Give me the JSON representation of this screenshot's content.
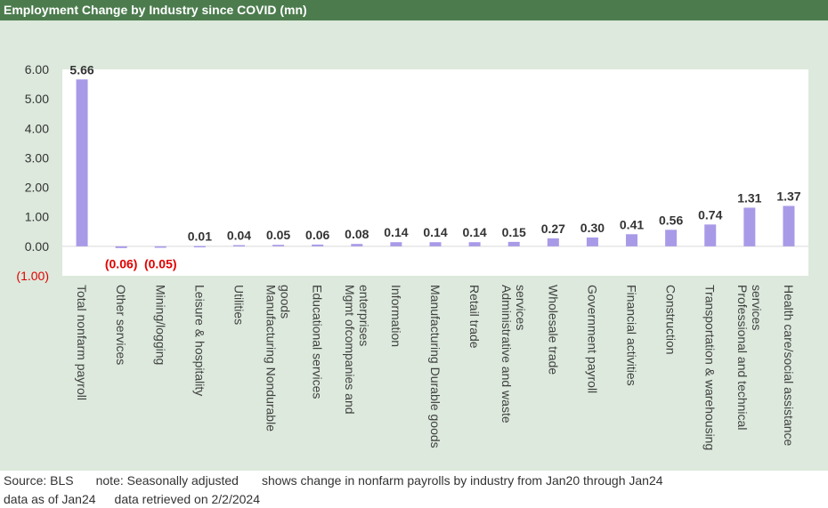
{
  "header": {
    "title": "Employment Change by Industry since COVID (mn)"
  },
  "footer": {
    "source": "Source: BLS",
    "note": "note: Seasonally adjusted",
    "description": "shows change in nonfarm payrolls by industry from Jan20 through Jan24",
    "data_as_of": "data as of Jan24",
    "retrieved": "data retrieved on 2/2/2024"
  },
  "colors": {
    "bar": "#a99ae8",
    "positive_label": "#333333",
    "negative_label": "#e00000",
    "plot_bg": "#ffffff",
    "page_bg": "#dce9dc",
    "header_bg": "#4c7c4e"
  },
  "chart_data": {
    "type": "bar",
    "title": "Employment Change by Industry since COVID (mn)",
    "xlabel": "",
    "ylabel": "",
    "ylim": [
      -1.0,
      6.0
    ],
    "grid": false,
    "yticks": [
      "(1.00)",
      "0.00",
      "1.00",
      "2.00",
      "3.00",
      "4.00",
      "5.00",
      "6.00"
    ],
    "categories": [
      "Total nonfarm payroll",
      "Other services",
      "Mining/logging",
      "Leisure & hospitality",
      "Utilities",
      "Manufacturing Nondurable goods",
      "Educational services",
      "Mgmt ofcompanies and enterprises",
      "Information",
      "Manufacturing Durable goods",
      "Retail trade",
      "Administrative and waste services",
      "Wholesale trade",
      "Government payroll",
      "Financial activities",
      "Construction",
      "Transportation & warehousing",
      "Professional and technical services",
      "Health care/social assistance"
    ],
    "category_lines": [
      [
        "Total nonfarm payroll"
      ],
      [
        "Other services"
      ],
      [
        "Mining/logging"
      ],
      [
        "Leisure & hospitality"
      ],
      [
        "Utilities"
      ],
      [
        "Manufacturing Nondurable",
        "goods"
      ],
      [
        "Educational services"
      ],
      [
        "Mgmt ofcompanies and",
        "enterprises"
      ],
      [
        "Information"
      ],
      [
        "Manufacturing Durable goods"
      ],
      [
        "Retail trade"
      ],
      [
        "Administrative and waste",
        "services"
      ],
      [
        "Wholesale trade"
      ],
      [
        "Government payroll"
      ],
      [
        "Financial activities"
      ],
      [
        "Construction"
      ],
      [
        "Transportation & warehousing"
      ],
      [
        "Professional and technical",
        "services"
      ],
      [
        "Health care/social assistance"
      ]
    ],
    "values": [
      5.66,
      -0.06,
      -0.05,
      0.01,
      0.04,
      0.05,
      0.06,
      0.08,
      0.14,
      0.14,
      0.14,
      0.15,
      0.27,
      0.3,
      0.41,
      0.56,
      0.74,
      1.31,
      1.37
    ],
    "data_labels": [
      "5.66",
      "(0.06)",
      "(0.05)",
      "0.01",
      "0.04",
      "0.05",
      "0.06",
      "0.08",
      "0.14",
      "0.14",
      "0.14",
      "0.15",
      "0.27",
      "0.30",
      "0.41",
      "0.56",
      "0.74",
      "1.31",
      "1.37"
    ]
  }
}
